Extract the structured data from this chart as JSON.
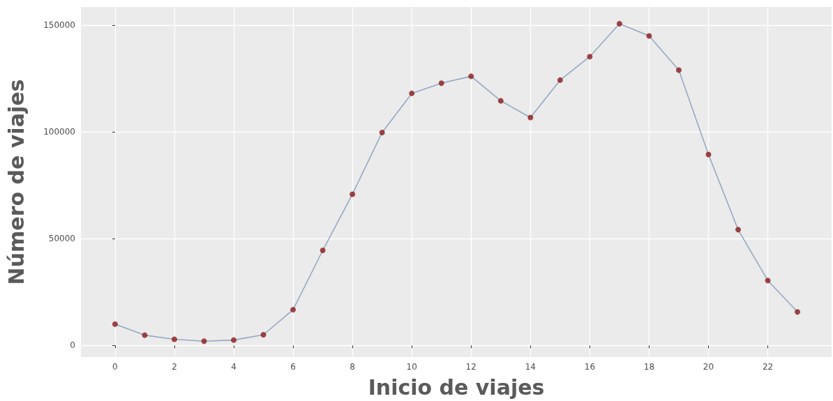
{
  "chart_data": {
    "type": "line",
    "xlabel": "Inicio de viajes",
    "ylabel": "Número de viajes",
    "x": [
      0,
      1,
      2,
      3,
      4,
      5,
      6,
      7,
      8,
      9,
      10,
      11,
      12,
      13,
      14,
      15,
      16,
      17,
      18,
      19,
      20,
      21,
      22,
      23
    ],
    "series": [
      {
        "color": "#94a9c4",
        "marker": "none",
        "values": [
          10000,
          4800,
          2900,
          2000,
          2500,
          5000,
          16700,
          44500,
          70800,
          99700,
          118000,
          122800,
          126000,
          114500,
          106700,
          124200,
          135200,
          150600,
          144900,
          128900,
          89400,
          54200,
          30400,
          15700
        ]
      },
      {
        "type": "scatter",
        "color": "#8b1a1a",
        "values": [
          10000,
          4800,
          2900,
          2000,
          2500,
          5000,
          16700,
          44500,
          70800,
          99700,
          118000,
          122800,
          126000,
          114500,
          106700,
          124200,
          135200,
          150600,
          144900,
          128900,
          89400,
          54200,
          30400,
          15700
        ]
      }
    ],
    "xlim": [
      -1.15,
      24.15
    ],
    "xticks": [
      0,
      2,
      4,
      6,
      8,
      10,
      12,
      14,
      16,
      18,
      20,
      22
    ],
    "ylim": [
      -5450,
      158450
    ],
    "yticks": [
      0,
      50000,
      100000,
      150000
    ],
    "grid": true,
    "marker": "circle",
    "line_style": "solid"
  }
}
